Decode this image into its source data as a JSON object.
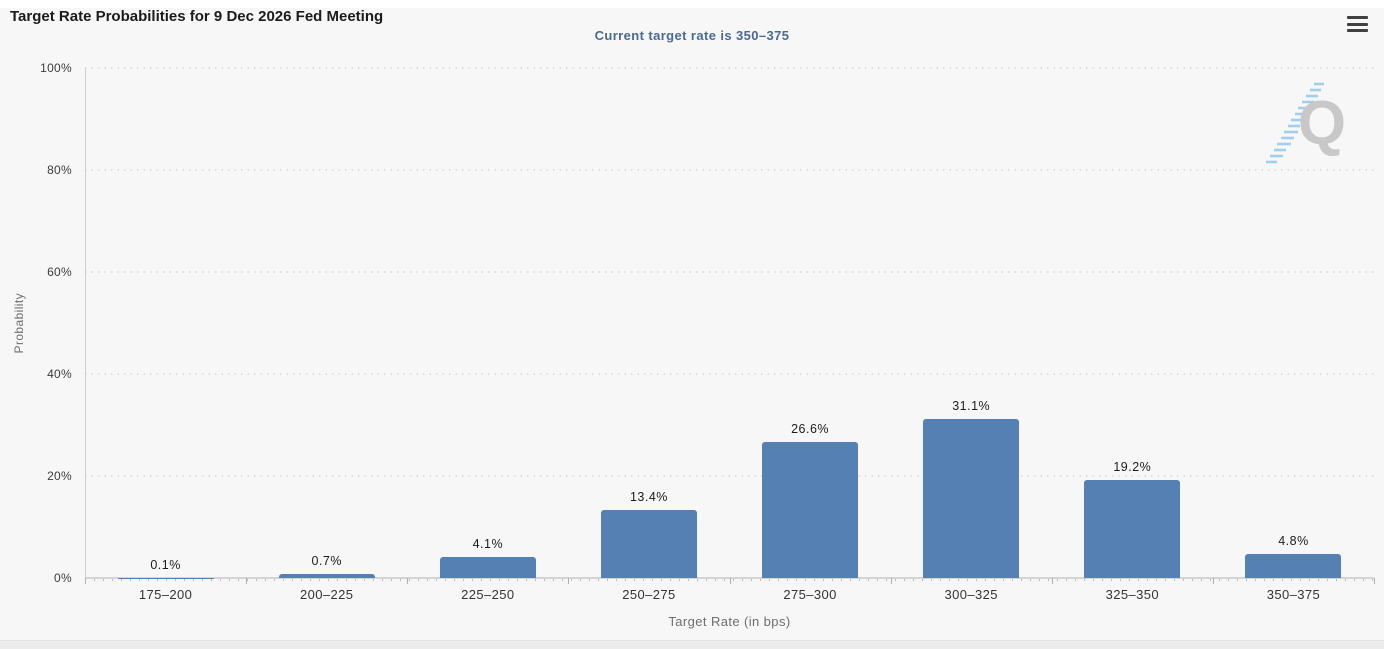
{
  "header": {
    "menu_icon": "hamburger-context-menu"
  },
  "colors": {
    "bar": "#5580b3",
    "subtitle_text": "#4a6a96",
    "background": "#f7f7f7",
    "watermark_gray": "#c6c6c6",
    "watermark_blue": "#9ecdea"
  },
  "chart_data": {
    "type": "bar",
    "title": "Target Rate Probabilities for 9 Dec 2026 Fed Meeting",
    "subtitle": "Current target rate is 350–375",
    "categories": [
      "175–200",
      "200–225",
      "225–250",
      "250–275",
      "275–300",
      "300–325",
      "325–350",
      "350–375"
    ],
    "values": [
      0.1,
      0.7,
      4.1,
      13.4,
      26.6,
      31.1,
      19.2,
      4.8
    ],
    "value_labels": [
      "0.1%",
      "0.7%",
      "4.1%",
      "13.4%",
      "26.6%",
      "31.1%",
      "19.2%",
      "4.8%"
    ],
    "xlabel": "Target Rate (in bps)",
    "ylabel": "Probability",
    "ylim": [
      0,
      100
    ],
    "ytick_values": [
      0,
      20,
      40,
      60,
      80,
      100
    ],
    "ytick_labels": [
      "0%",
      "20%",
      "40%",
      "60%",
      "80%",
      "100%"
    ],
    "grid": "horizontal-dotted",
    "legend": "none",
    "bar_color": "#5580b3",
    "watermark_letter": "Q"
  }
}
